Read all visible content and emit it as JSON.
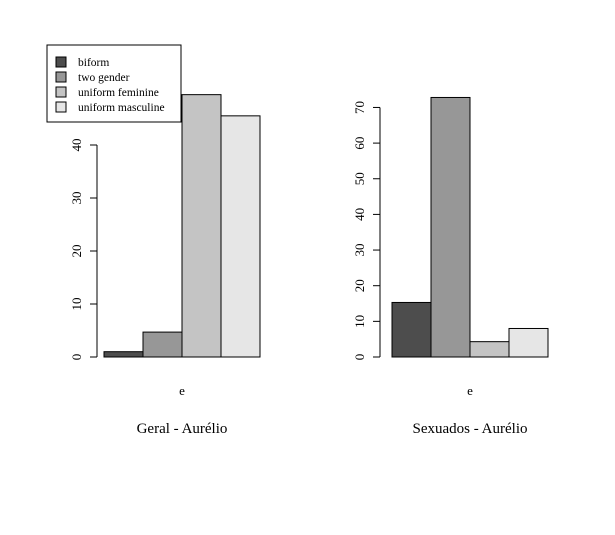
{
  "legend": {
    "entries": [
      {
        "label": "biform",
        "color": "#4d4d4d"
      },
      {
        "label": "two gender",
        "color": "#979797"
      },
      {
        "label": "uniform feminine",
        "color": "#c4c4c4"
      },
      {
        "label": "uniform masculine",
        "color": "#e6e6e6"
      }
    ]
  },
  "chart_data": [
    {
      "type": "bar",
      "categories": [
        "e"
      ],
      "series": [
        {
          "name": "biform",
          "values": [
            1
          ]
        },
        {
          "name": "two gender",
          "values": [
            4.7
          ]
        },
        {
          "name": "uniform feminine",
          "values": [
            49.5
          ]
        },
        {
          "name": "uniform masculine",
          "values": [
            45.5
          ]
        }
      ],
      "xlabel": "Geral - Aurélio",
      "ylabel": "",
      "yticks": [
        0,
        10,
        20,
        30,
        40
      ],
      "ylim": [
        0,
        50
      ],
      "legend": "top-left",
      "grid": false
    },
    {
      "type": "bar",
      "categories": [
        "e"
      ],
      "series": [
        {
          "name": "biform",
          "values": [
            15.3
          ]
        },
        {
          "name": "two gender",
          "values": [
            72.8
          ]
        },
        {
          "name": "uniform feminine",
          "values": [
            4.3
          ]
        },
        {
          "name": "uniform masculine",
          "values": [
            8.0
          ]
        }
      ],
      "xlabel": "Sexuados - Aurélio",
      "ylabel": "",
      "yticks": [
        0,
        10,
        20,
        30,
        40,
        50,
        60,
        70
      ],
      "ylim": [
        0,
        73
      ],
      "grid": false
    }
  ]
}
